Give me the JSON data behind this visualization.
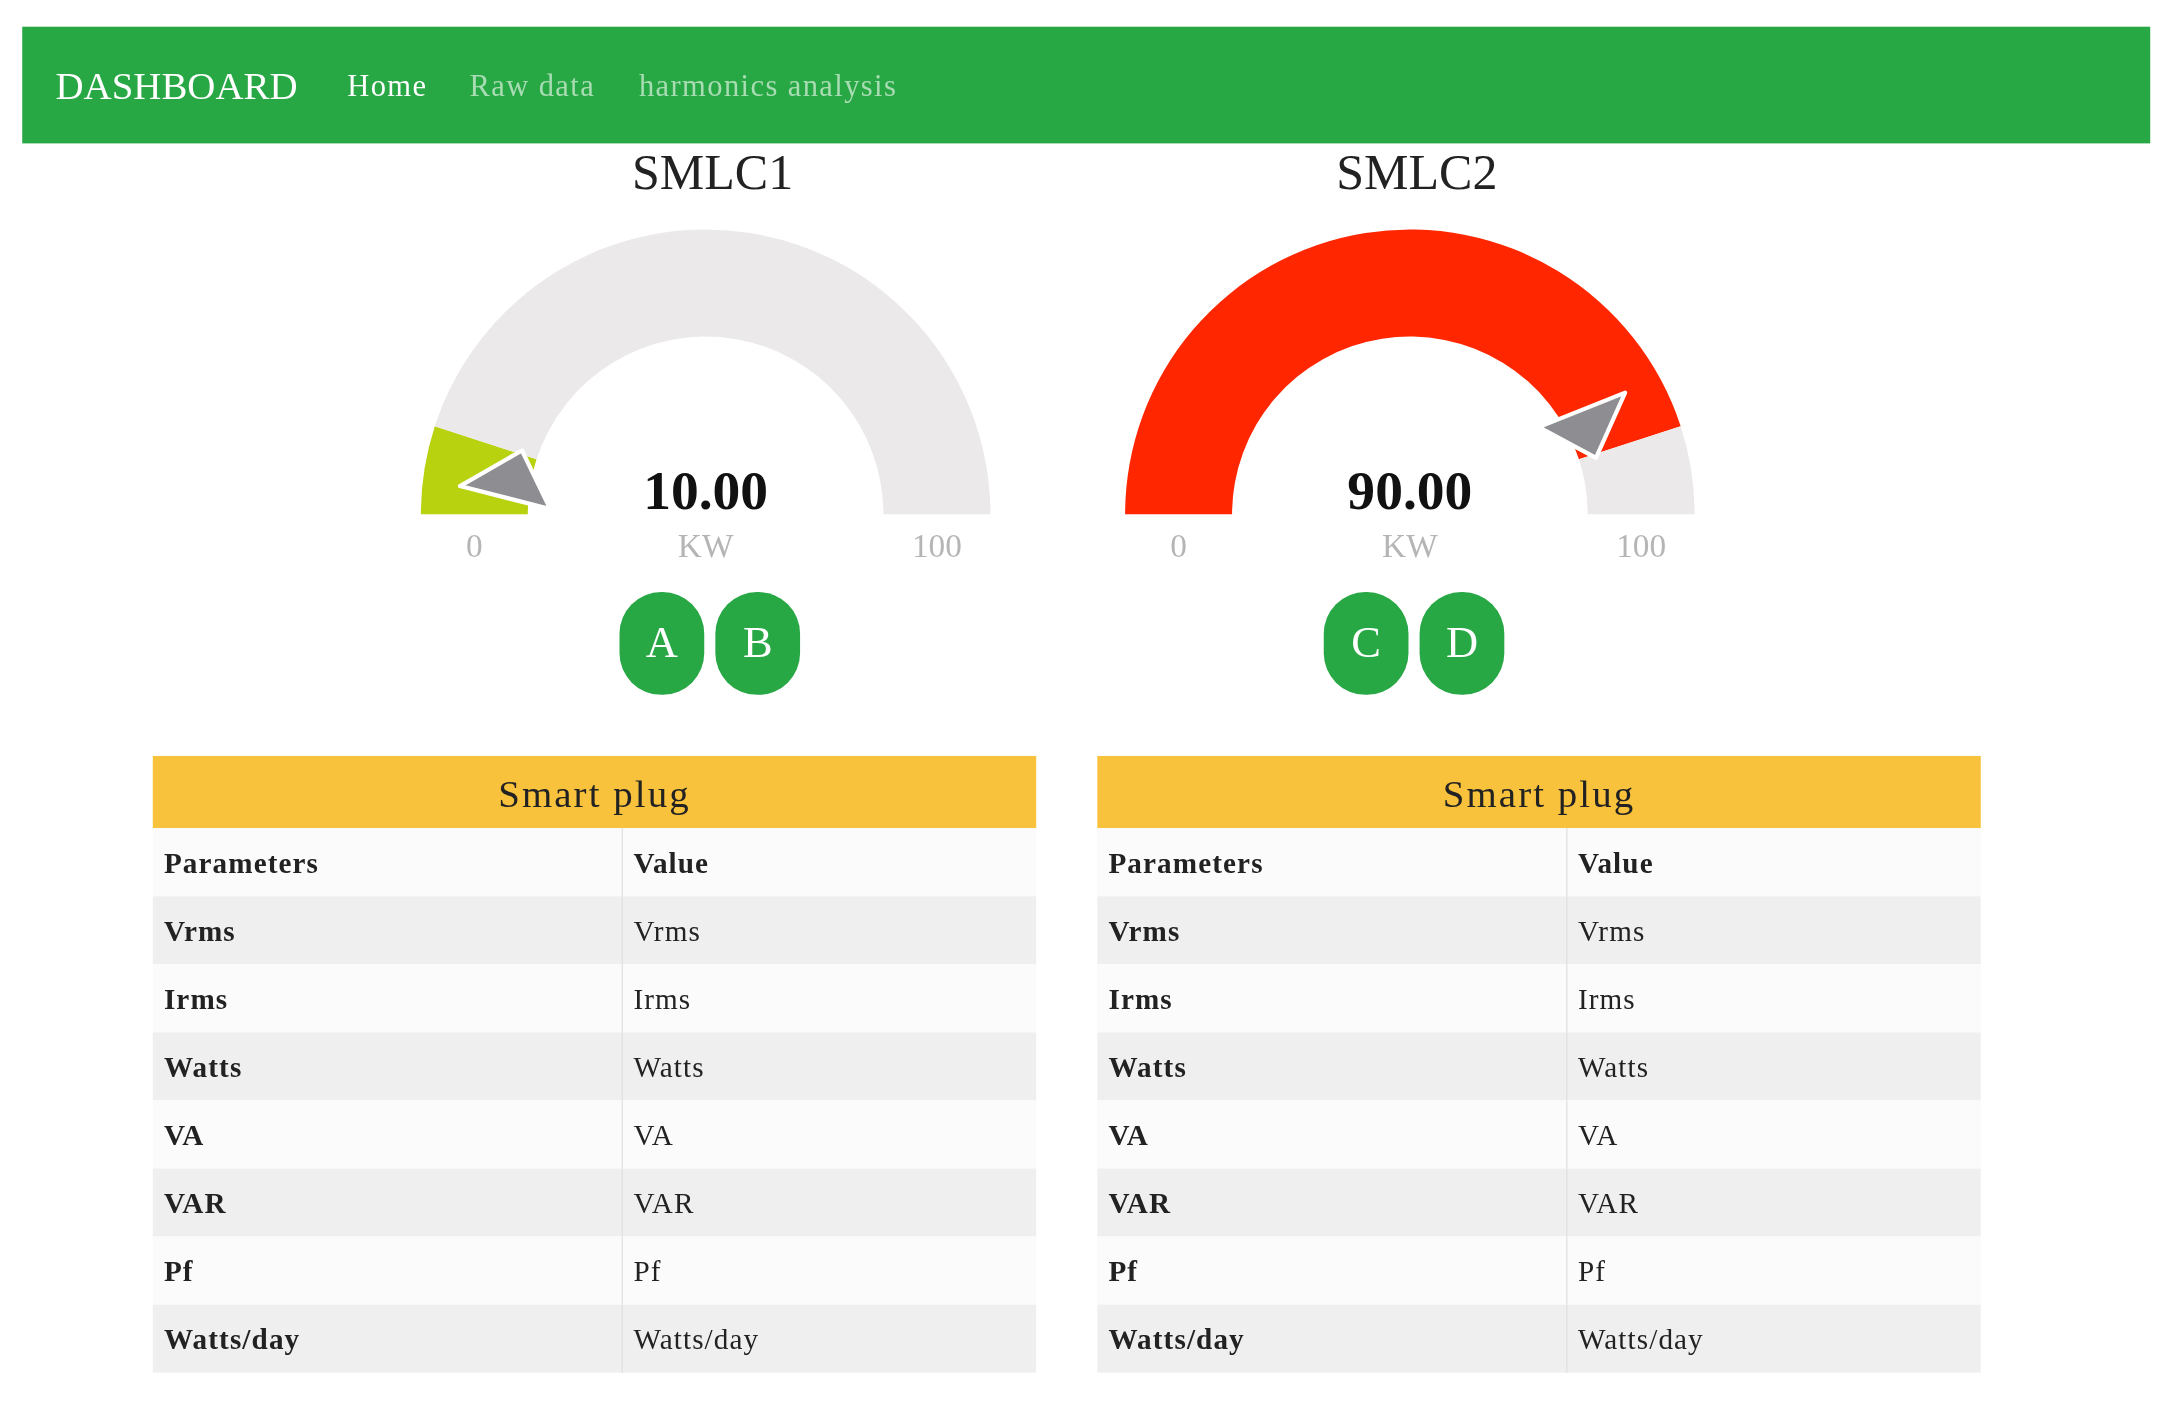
{
  "chart_data": [
    {
      "type": "other",
      "title": "DASHBOARD",
      "annotations": [
        "Home",
        "Raw data",
        "harmonics analysis"
      ]
    },
    {
      "type": "donut",
      "title": "SMLC1",
      "categories": [
        null,
        null
      ],
      "values": [
        10,
        90
      ],
      "colors": [
        "#b8d20f",
        "#ebe9ea"
      ],
      "annotations": [
        "10.00",
        "KW",
        "0",
        "100",
        "A",
        "B"
      ]
    },
    {
      "type": "donut",
      "title": "SMLC2",
      "categories": [
        null,
        null
      ],
      "values": [
        90,
        10
      ],
      "colors": [
        "#ff2600",
        "#ebe9ea"
      ],
      "annotations": [
        "90.00",
        "KW",
        "0",
        "100",
        "C",
        "D"
      ]
    },
    {
      "type": "other",
      "title": "Smart plug",
      "annotations": [
        "Parameters",
        "Value",
        "Vrms",
        "Vrms",
        "Irms",
        "Irms",
        "Watts",
        "Watts",
        "VA",
        "VA",
        "VAR",
        "VAR",
        "Pf",
        "Pf",
        "Watts/day",
        "Watts/day"
      ]
    },
    {
      "type": "other",
      "title": "Smart plug",
      "annotations": [
        "Parameters",
        "Value",
        "Vrms",
        "Vrms",
        "Irms",
        "Irms",
        "Watts",
        "Watts",
        "VA",
        "VA",
        "VAR",
        "VAR",
        "Pf",
        "Pf",
        "Watts/day",
        "Watts/day"
      ]
    }
  ]
}
